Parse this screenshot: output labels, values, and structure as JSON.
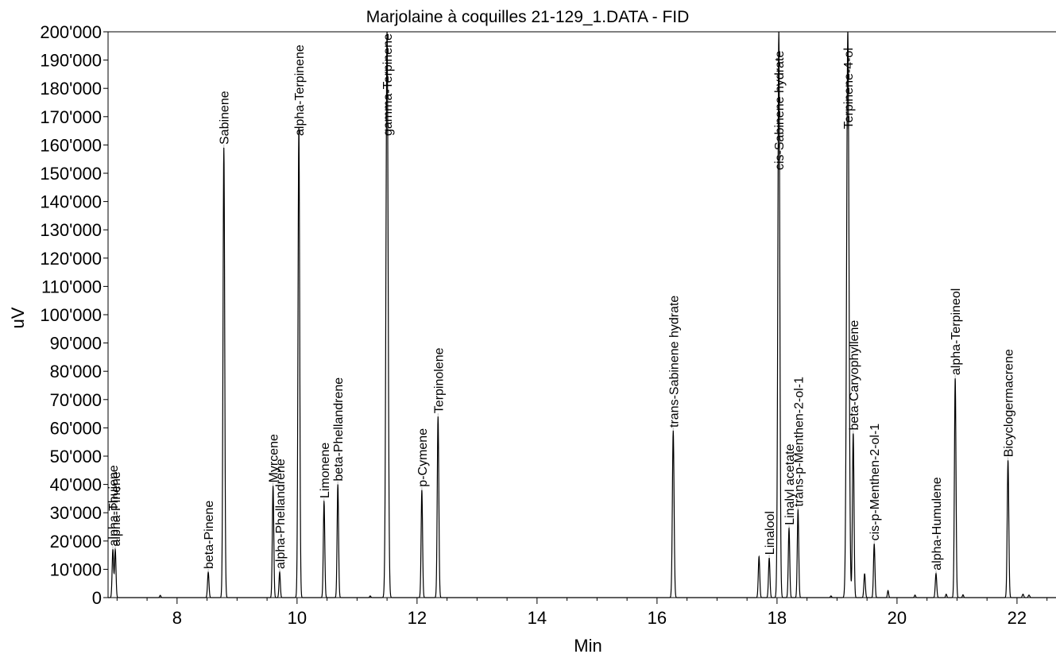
{
  "chart_data": {
    "type": "line",
    "title": "Marjolaine à coquilles 21-129_1.DATA - FID",
    "xlabel": "Min",
    "ylabel": "uV",
    "xlim": [
      6.85,
      22.65
    ],
    "ylim": [
      -3000,
      200000
    ],
    "y_ticks": [
      0,
      10000,
      20000,
      30000,
      40000,
      50000,
      60000,
      70000,
      80000,
      90000,
      100000,
      110000,
      120000,
      130000,
      140000,
      150000,
      160000,
      170000,
      180000,
      190000,
      200000
    ],
    "y_tick_labels": [
      "0",
      "10'000",
      "20'000",
      "30'000",
      "40'000",
      "50'000",
      "60'000",
      "70'000",
      "80'000",
      "90'000",
      "100'000",
      "110'000",
      "120'000",
      "130'000",
      "140'000",
      "150'000",
      "160'000",
      "170'000",
      "180'000",
      "190'000",
      "200'000"
    ],
    "x_ticks": [
      8,
      10,
      12,
      14,
      16,
      18,
      20,
      22
    ],
    "x_tick_labels": [
      "8",
      "10",
      "12",
      "14",
      "16",
      "18",
      "20",
      "22"
    ],
    "grid": false,
    "line_color": "#000000",
    "label_tick_color": "#bdbdbd",
    "baseline": 0,
    "peaks": [
      {
        "name": "alpha-Thujene",
        "rt": 6.93,
        "height": 17000,
        "width": 0.012
      },
      {
        "name": "alpha-Pinene",
        "rt": 6.97,
        "height": 17000,
        "width": 0.012
      },
      {
        "name": "",
        "rt": 7.72,
        "height": 800,
        "width": 0.01
      },
      {
        "name": "beta-Pinene",
        "rt": 8.52,
        "height": 9000,
        "width": 0.012
      },
      {
        "name": "Sabinene",
        "rt": 8.78,
        "height": 159000,
        "width": 0.014
      },
      {
        "name": "Myrcene",
        "rt": 9.6,
        "height": 39500,
        "width": 0.012
      },
      {
        "name": "alpha-Phellandrene",
        "rt": 9.71,
        "height": 9000,
        "width": 0.011
      },
      {
        "name": "alpha-Terpinene",
        "rt": 10.03,
        "height": 166000,
        "width": 0.014
      },
      {
        "name": "Limonene",
        "rt": 10.45,
        "height": 34000,
        "width": 0.012
      },
      {
        "name": "beta-Phellandrene",
        "rt": 10.68,
        "height": 40000,
        "width": 0.012
      },
      {
        "name": "",
        "rt": 11.22,
        "height": 600,
        "width": 0.01
      },
      {
        "name": "gamma-Terpinene",
        "rt": 11.5,
        "height": 200000,
        "width": 0.018
      },
      {
        "name": "p-Cymene",
        "rt": 12.08,
        "height": 38000,
        "width": 0.012
      },
      {
        "name": "Terpinolene",
        "rt": 12.35,
        "height": 64000,
        "width": 0.013
      },
      {
        "name": "trans-Sabinene hydrate",
        "rt": 16.27,
        "height": 59000,
        "width": 0.014
      },
      {
        "name": "",
        "rt": 17.7,
        "height": 14500,
        "width": 0.012
      },
      {
        "name": "Linalool",
        "rt": 17.87,
        "height": 14000,
        "width": 0.012
      },
      {
        "name": "cis-Sabinene hydrate",
        "rt": 18.03,
        "height": 200000,
        "width": 0.016
      },
      {
        "name": "Linalyl acetate",
        "rt": 18.2,
        "height": 24500,
        "width": 0.012
      },
      {
        "name": "trans-p-Menthen-2-ol-1",
        "rt": 18.35,
        "height": 31000,
        "width": 0.012
      },
      {
        "name": "",
        "rt": 18.9,
        "height": 600,
        "width": 0.01
      },
      {
        "name": "Terpinene-4-ol",
        "rt": 19.18,
        "height": 200000,
        "width": 0.02
      },
      {
        "name": "beta-Caryophyllene",
        "rt": 19.27,
        "height": 58000,
        "width": 0.013
      },
      {
        "name": "",
        "rt": 19.46,
        "height": 8500,
        "width": 0.012
      },
      {
        "name": "cis-p-Menthen-2-ol-1",
        "rt": 19.62,
        "height": 19000,
        "width": 0.012
      },
      {
        "name": "",
        "rt": 19.85,
        "height": 2500,
        "width": 0.01
      },
      {
        "name": "",
        "rt": 20.3,
        "height": 900,
        "width": 0.01
      },
      {
        "name": "alpha-Humulene",
        "rt": 20.65,
        "height": 8500,
        "width": 0.012
      },
      {
        "name": "",
        "rt": 20.82,
        "height": 1200,
        "width": 0.01
      },
      {
        "name": "alpha-Terpineol",
        "rt": 20.97,
        "height": 77500,
        "width": 0.013
      },
      {
        "name": "",
        "rt": 21.1,
        "height": 1000,
        "width": 0.01
      },
      {
        "name": "Bicyclogermacrene",
        "rt": 21.85,
        "height": 48500,
        "width": 0.013
      },
      {
        "name": "",
        "rt": 22.1,
        "height": 1200,
        "width": 0.012
      },
      {
        "name": "",
        "rt": 22.2,
        "height": 900,
        "width": 0.012
      }
    ]
  }
}
